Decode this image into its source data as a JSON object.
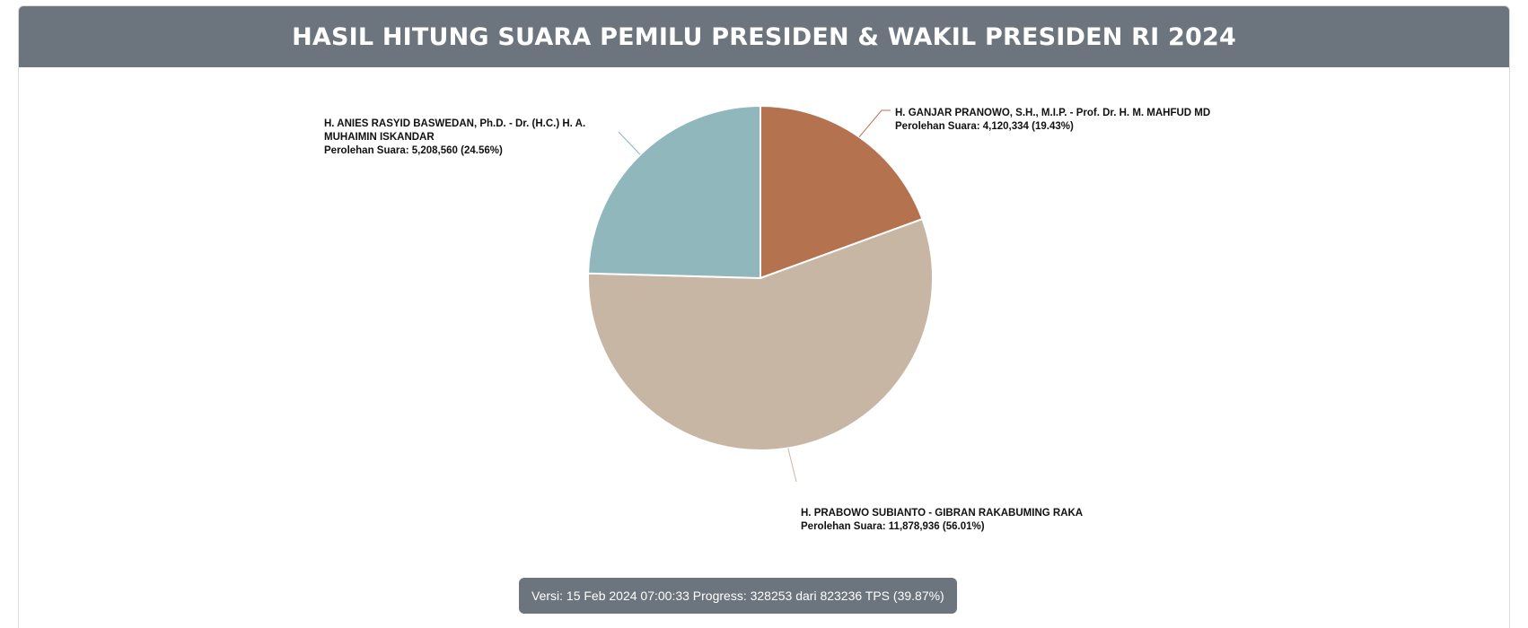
{
  "header": {
    "title": "HASIL HITUNG SUARA PEMILU PRESIDEN & WAKIL PRESIDEN RI 2024"
  },
  "chart_data": {
    "type": "pie",
    "title": "HASIL HITUNG SUARA PEMILU PRESIDEN & WAKIL PRESIDEN RI 2024",
    "start": "top",
    "direction": "clockwise",
    "slices": [
      {
        "key": "ganjar",
        "label": "H. GANJAR PRANOWO, S.H., M.I.P. - Prof. Dr. H. M. MAHFUD MD",
        "value_text": "Perolehan Suara: 4,120,334 (19.43%)",
        "votes": 4120334,
        "percent": 19.43,
        "color": "#b4724f"
      },
      {
        "key": "prabowo",
        "label": "H. PRABOWO SUBIANTO - GIBRAN RAKABUMING RAKA",
        "value_text": "Perolehan Suara: 11,878,936 (56.01%)",
        "votes": 11878936,
        "percent": 56.01,
        "color": "#c8b6a5"
      },
      {
        "key": "anies",
        "label": "H. ANIES RASYID BASWEDAN, Ph.D. - Dr. (H.C.) H. A. MUHAIMIN ISKANDAR",
        "value_text": "Perolehan Suara: 5,208,560 (24.56%)",
        "votes": 5208560,
        "percent": 24.56,
        "color": "#8fb7bc"
      }
    ]
  },
  "footer": {
    "version_text": "Versi: 15 Feb 2024 07:00:33 Progress: 328253 dari 823236 TPS (39.87%)"
  }
}
